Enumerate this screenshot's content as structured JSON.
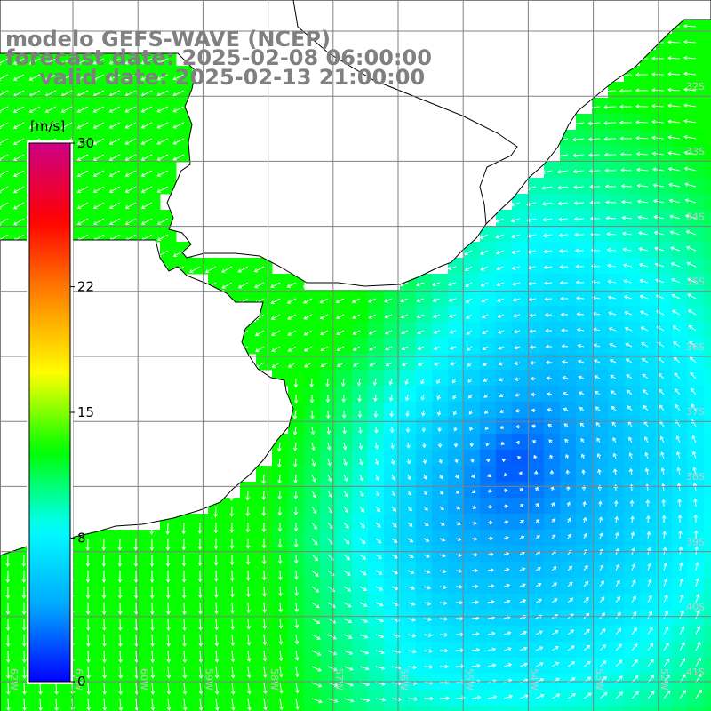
{
  "titles": {
    "model": "modelo GEFS-WAVE (NCEP)",
    "forecast": "forecast date: 2025-02-08 06:00:00",
    "valid": "valid date: 2025-02-13 21:00:00"
  },
  "colorbar": {
    "unit": "[m/s]",
    "ticks": [
      "30",
      "22",
      "15",
      "8",
      "0"
    ],
    "tick_values": [
      30,
      22,
      15,
      8,
      0
    ],
    "vmin": 0,
    "vmax": 30,
    "colors": [
      "#0000ff",
      "#00aaff",
      "#00ffff",
      "#00ff00",
      "#ffff00",
      "#ff8800",
      "#ff0000",
      "#cc0088"
    ]
  },
  "grid_labels": {
    "lat": [
      "32S",
      "33S",
      "34S",
      "35S",
      "36S",
      "37S",
      "38S",
      "39S",
      "40S",
      "41S"
    ],
    "lon": [
      "62W",
      "61W",
      "60W",
      "59W",
      "58W",
      "57W",
      "56W",
      "55W",
      "54W",
      "53W",
      "52W",
      "51W"
    ]
  },
  "map": {
    "variable": "wind speed and direction",
    "land_color": "#ffffff",
    "coast_color": "#000000",
    "grid_color": "#808080"
  }
}
